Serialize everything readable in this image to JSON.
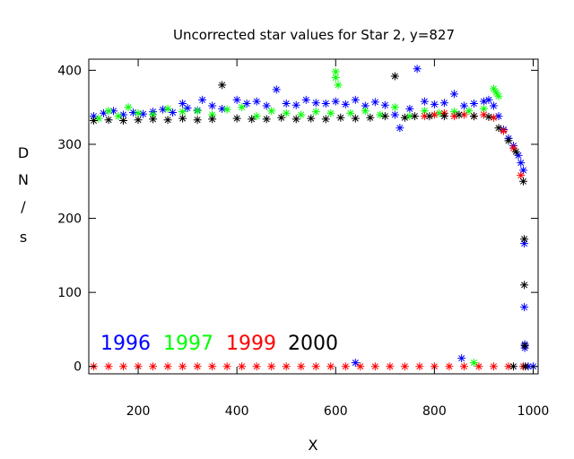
{
  "chart_data": {
    "type": "scatter",
    "title": "Uncorrected star values for Star 2, y=827",
    "xlabel": "X",
    "ylabel_chars": [
      "D",
      "N",
      "/",
      "s"
    ],
    "xlim": [
      100,
      1010
    ],
    "ylim": [
      -10,
      415
    ],
    "xticks": [
      200,
      400,
      600,
      800,
      1000
    ],
    "yticks": [
      0,
      100,
      200,
      300,
      400
    ],
    "marker": "asterisk",
    "series": [
      {
        "name": "1996",
        "color": "#0000ff",
        "points": [
          [
            110,
            338
          ],
          [
            130,
            342
          ],
          [
            150,
            345
          ],
          [
            170,
            340
          ],
          [
            190,
            343
          ],
          [
            210,
            341
          ],
          [
            230,
            344
          ],
          [
            250,
            347
          ],
          [
            270,
            343
          ],
          [
            290,
            355
          ],
          [
            300,
            349
          ],
          [
            320,
            346
          ],
          [
            330,
            360
          ],
          [
            350,
            352
          ],
          [
            370,
            348
          ],
          [
            400,
            360
          ],
          [
            420,
            355
          ],
          [
            440,
            358
          ],
          [
            460,
            352
          ],
          [
            480,
            374
          ],
          [
            500,
            355
          ],
          [
            520,
            353
          ],
          [
            540,
            360
          ],
          [
            560,
            356
          ],
          [
            580,
            355
          ],
          [
            600,
            358
          ],
          [
            620,
            354
          ],
          [
            640,
            360
          ],
          [
            660,
            352
          ],
          [
            680,
            357
          ],
          [
            700,
            353
          ],
          [
            720,
            340
          ],
          [
            730,
            322
          ],
          [
            750,
            348
          ],
          [
            765,
            402
          ],
          [
            780,
            358
          ],
          [
            800,
            354
          ],
          [
            820,
            356
          ],
          [
            840,
            368
          ],
          [
            860,
            352
          ],
          [
            880,
            355
          ],
          [
            900,
            358
          ],
          [
            910,
            360
          ],
          [
            920,
            352
          ],
          [
            930,
            338
          ],
          [
            940,
            320
          ],
          [
            950,
            308
          ],
          [
            960,
            298
          ],
          [
            970,
            285
          ],
          [
            975,
            275
          ],
          [
            980,
            265
          ],
          [
            982,
            166
          ],
          [
            982,
            80
          ],
          [
            983,
            30
          ],
          [
            983,
            25
          ],
          [
            640,
            5
          ],
          [
            855,
            11
          ],
          [
            990,
            0
          ],
          [
            1000,
            0
          ]
        ]
      },
      {
        "name": "1997",
        "color": "#00ff00",
        "points": [
          [
            120,
            335
          ],
          [
            140,
            345
          ],
          [
            160,
            338
          ],
          [
            180,
            350
          ],
          [
            200,
            342
          ],
          [
            230,
            340
          ],
          [
            260,
            348
          ],
          [
            290,
            344
          ],
          [
            320,
            345
          ],
          [
            350,
            340
          ],
          [
            380,
            347
          ],
          [
            410,
            350
          ],
          [
            440,
            338
          ],
          [
            470,
            345
          ],
          [
            500,
            342
          ],
          [
            530,
            340
          ],
          [
            560,
            344
          ],
          [
            590,
            342
          ],
          [
            600,
            398
          ],
          [
            600,
            390
          ],
          [
            605,
            380
          ],
          [
            630,
            342
          ],
          [
            660,
            345
          ],
          [
            690,
            340
          ],
          [
            720,
            350
          ],
          [
            750,
            338
          ],
          [
            780,
            345
          ],
          [
            810,
            342
          ],
          [
            840,
            344
          ],
          [
            870,
            345
          ],
          [
            900,
            348
          ],
          [
            920,
            375
          ],
          [
            925,
            370
          ],
          [
            930,
            365
          ],
          [
            880,
            5
          ]
        ]
      },
      {
        "name": "1999",
        "color": "#ff0000",
        "points": [
          [
            110,
            0
          ],
          [
            140,
            0
          ],
          [
            170,
            0
          ],
          [
            200,
            0
          ],
          [
            230,
            0
          ],
          [
            260,
            0
          ],
          [
            290,
            0
          ],
          [
            320,
            0
          ],
          [
            350,
            0
          ],
          [
            380,
            0
          ],
          [
            410,
            0
          ],
          [
            440,
            0
          ],
          [
            470,
            0
          ],
          [
            500,
            0
          ],
          [
            530,
            0
          ],
          [
            560,
            0
          ],
          [
            590,
            0
          ],
          [
            620,
            0
          ],
          [
            650,
            0
          ],
          [
            680,
            0
          ],
          [
            710,
            0
          ],
          [
            740,
            0
          ],
          [
            770,
            0
          ],
          [
            800,
            0
          ],
          [
            830,
            0
          ],
          [
            860,
            0
          ],
          [
            890,
            0
          ],
          [
            920,
            0
          ],
          [
            950,
            0
          ],
          [
            980,
            0
          ],
          [
            780,
            338
          ],
          [
            800,
            340
          ],
          [
            820,
            342
          ],
          [
            840,
            338
          ],
          [
            860,
            340
          ],
          [
            880,
            338
          ],
          [
            900,
            340
          ],
          [
            920,
            336
          ],
          [
            940,
            318
          ],
          [
            960,
            295
          ],
          [
            975,
            258
          ]
        ]
      },
      {
        "name": "2000",
        "color": "#000000",
        "points": [
          [
            110,
            332
          ],
          [
            140,
            333
          ],
          [
            170,
            332
          ],
          [
            200,
            333
          ],
          [
            230,
            334
          ],
          [
            260,
            333
          ],
          [
            290,
            335
          ],
          [
            320,
            333
          ],
          [
            350,
            334
          ],
          [
            370,
            380
          ],
          [
            400,
            335
          ],
          [
            430,
            334
          ],
          [
            460,
            334
          ],
          [
            490,
            336
          ],
          [
            520,
            334
          ],
          [
            550,
            335
          ],
          [
            580,
            334
          ],
          [
            610,
            336
          ],
          [
            640,
            335
          ],
          [
            670,
            336
          ],
          [
            700,
            338
          ],
          [
            720,
            392
          ],
          [
            740,
            336
          ],
          [
            760,
            338
          ],
          [
            790,
            338
          ],
          [
            820,
            338
          ],
          [
            850,
            340
          ],
          [
            880,
            338
          ],
          [
            910,
            337
          ],
          [
            930,
            322
          ],
          [
            950,
            305
          ],
          [
            965,
            290
          ],
          [
            980,
            250
          ],
          [
            982,
            172
          ],
          [
            982,
            110
          ],
          [
            983,
            28
          ],
          [
            984,
            0
          ],
          [
            960,
            0
          ]
        ]
      }
    ],
    "legend": {
      "placement": "bottom-left",
      "entries": [
        {
          "label": "1996",
          "color": "#0000ff"
        },
        {
          "label": "1997",
          "color": "#00ff00"
        },
        {
          "label": "1999",
          "color": "#ff0000"
        },
        {
          "label": "2000",
          "color": "#000000"
        }
      ]
    }
  }
}
